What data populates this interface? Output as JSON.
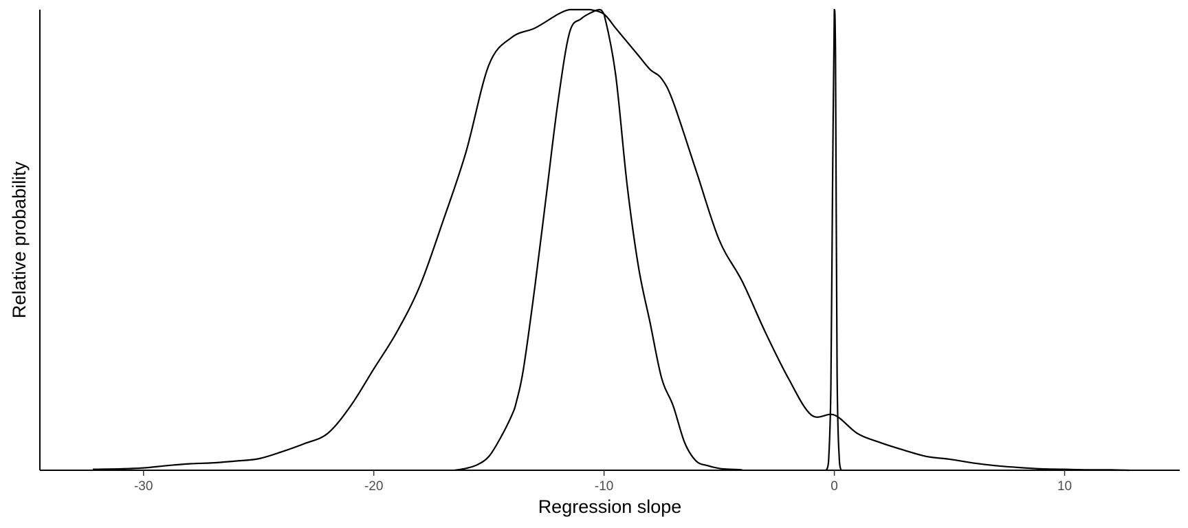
{
  "chart_data": {
    "type": "line",
    "title": "",
    "xlabel": "Regression slope",
    "ylabel": "Relative probability",
    "xlim": [
      -34.5,
      15
    ],
    "ylim": [
      0,
      1
    ],
    "x_ticks": [
      -30,
      -20,
      -10,
      0,
      10
    ],
    "x_tick_labels": [
      "-30",
      "-20",
      "-10",
      "0",
      "10"
    ],
    "y_ticks_shown": false,
    "grid": false,
    "legend": "none",
    "line_color": "#000000",
    "series": [
      {
        "x": [
          -32.2,
          -31,
          -30,
          -29,
          -28,
          -27,
          -26,
          -25,
          -24,
          -23,
          -22,
          -21,
          -20,
          -19,
          -18,
          -17,
          -16,
          -15,
          -14,
          -13,
          -12,
          -11.5,
          -11,
          -10.6,
          -10,
          -9.5,
          -9,
          -8.5,
          -8,
          -7.5,
          -7,
          -6,
          -5,
          -4,
          -3,
          -2,
          -1,
          0,
          1,
          2,
          3,
          4,
          5,
          6,
          7,
          8,
          9,
          10,
          11,
          12,
          12.8
        ],
        "y": [
          0.002,
          0.003,
          0.005,
          0.01,
          0.014,
          0.016,
          0.02,
          0.025,
          0.04,
          0.058,
          0.08,
          0.14,
          0.22,
          0.3,
          0.4,
          0.54,
          0.69,
          0.88,
          0.94,
          0.96,
          0.99,
          1.0,
          1.0,
          1.0,
          0.99,
          0.96,
          0.93,
          0.9,
          0.87,
          0.85,
          0.8,
          0.65,
          0.5,
          0.41,
          0.3,
          0.2,
          0.12,
          0.12,
          0.08,
          0.06,
          0.044,
          0.03,
          0.024,
          0.016,
          0.01,
          0.006,
          0.003,
          0.002,
          0.001,
          0.001,
          0.0
        ]
      },
      {
        "x": [
          -16.5,
          -16,
          -15.5,
          -15,
          -14.5,
          -14,
          -13.8,
          -13.5,
          -13,
          -12.5,
          -12,
          -11.5,
          -11,
          -10.5,
          -10.2,
          -10,
          -9.5,
          -9,
          -8.5,
          -8,
          -7.5,
          -7,
          -6.5,
          -6,
          -5.5,
          -5,
          -4.5,
          -4
        ],
        "y": [
          0.0,
          0.004,
          0.012,
          0.03,
          0.07,
          0.12,
          0.15,
          0.22,
          0.4,
          0.6,
          0.8,
          0.95,
          0.98,
          0.995,
          1.0,
          0.99,
          0.86,
          0.62,
          0.44,
          0.32,
          0.2,
          0.14,
          0.06,
          0.02,
          0.01,
          0.004,
          0.002,
          0.001
        ]
      },
      {
        "x": [
          -0.35,
          -0.25,
          -0.15,
          -0.08,
          0.0,
          0.05,
          0.12,
          0.22,
          0.3
        ],
        "y": [
          0.0,
          0.02,
          0.18,
          0.6,
          1.0,
          0.91,
          0.21,
          0.02,
          0.0
        ]
      }
    ]
  }
}
